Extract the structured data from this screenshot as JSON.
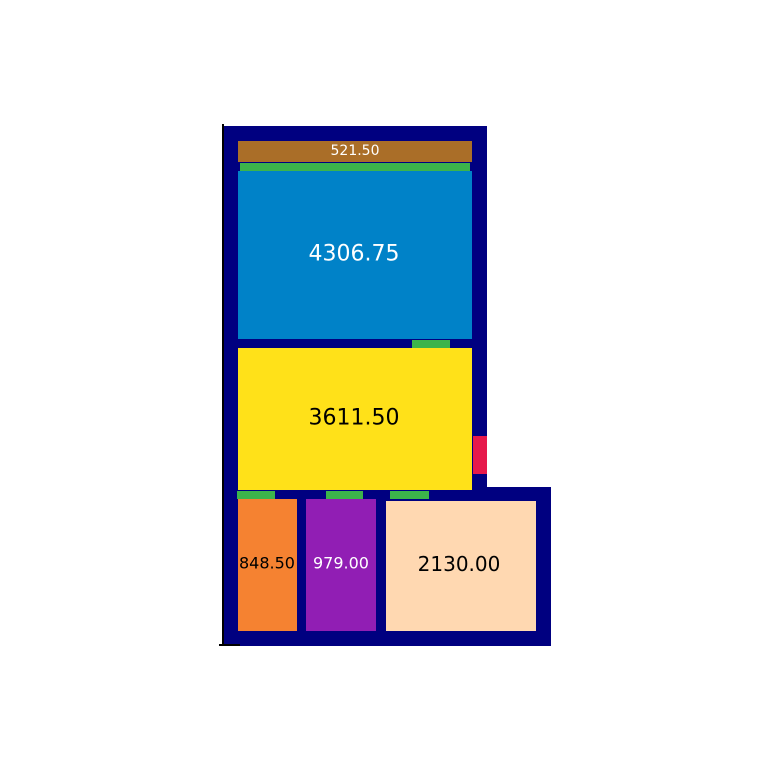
{
  "colors": {
    "background": "#ffffff",
    "wall": "#000080",
    "door": "#3cb44b",
    "window": "#e6194b"
  },
  "rooms": [
    {
      "id": "room-top-strip",
      "label": "521.50",
      "fill": "#aa6e28",
      "text_color": "#ffffff"
    },
    {
      "id": "room-large-blue",
      "label": "4306.75",
      "fill": "#0082c8",
      "text_color": "#ffffff"
    },
    {
      "id": "room-yellow",
      "label": "3611.50",
      "fill": "#ffe119",
      "text_color": "#000000"
    },
    {
      "id": "room-orange",
      "label": "848.50",
      "fill": "#f58231",
      "text_color": "#000000"
    },
    {
      "id": "room-purple",
      "label": "979.00",
      "fill": "#911eb4",
      "text_color": "#ffffff"
    },
    {
      "id": "room-peach",
      "label": "2130.00",
      "fill": "#ffd8b1",
      "text_color": "#000000"
    }
  ]
}
